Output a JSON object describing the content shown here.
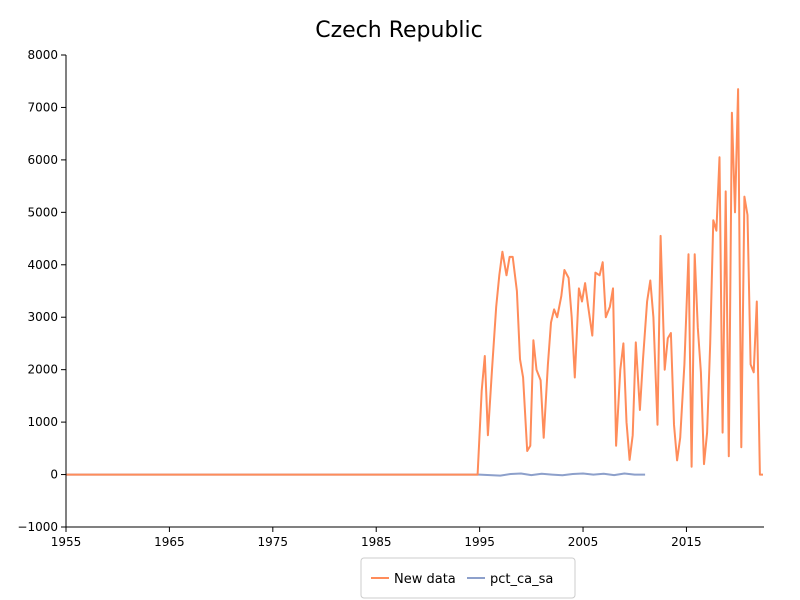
{
  "chart_data": {
    "type": "line",
    "title": "Czech Republic",
    "xlabel": "",
    "ylabel": "",
    "xlim": [
      1955,
      2022.5
    ],
    "ylim": [
      -1000,
      8000
    ],
    "xticks": [
      "1955",
      "1965",
      "1975",
      "1985",
      "1995",
      "2005",
      "2015"
    ],
    "yticks": [
      "−1000",
      "0",
      "1000",
      "2000",
      "3000",
      "4000",
      "5000",
      "6000",
      "7000",
      "8000"
    ],
    "grid": false,
    "legend_position": "bottom",
    "series": [
      {
        "name": "New data",
        "color": "#ff8c5a",
        "x": [
          1955,
          1994.8,
          1995.2,
          1995.5,
          1995.8,
          1996.2,
          1996.6,
          1996.9,
          1997.2,
          1997.6,
          1997.9,
          1998.2,
          1998.6,
          1998.9,
          1999.2,
          1999.6,
          1999.9,
          2000.2,
          2000.5,
          2000.9,
          2001.2,
          2001.6,
          2001.9,
          2002.2,
          2002.5,
          2002.9,
          2003.2,
          2003.6,
          2003.9,
          2004.2,
          2004.6,
          2004.9,
          2005.2,
          2005.5,
          2005.9,
          2006.2,
          2006.6,
          2006.9,
          2007.2,
          2007.6,
          2007.9,
          2008.2,
          2008.6,
          2008.9,
          2009.2,
          2009.5,
          2009.8,
          2010.1,
          2010.5,
          2010.8,
          2011.2,
          2011.5,
          2011.8,
          2012.2,
          2012.5,
          2012.9,
          2013.2,
          2013.5,
          2013.8,
          2014.1,
          2014.4,
          2014.8,
          2015.2,
          2015.5,
          2015.8,
          2016.1,
          2016.4,
          2016.7,
          2017.0,
          2017.3,
          2017.6,
          2017.9,
          2018.2,
          2018.5,
          2018.8,
          2019.1,
          2019.4,
          2019.7,
          2020.0,
          2020.3,
          2020.6,
          2020.9,
          2021.2,
          2021.5,
          2021.8,
          2022.1,
          2022.4
        ],
        "y": [
          0,
          0,
          1600,
          2260,
          750,
          2000,
          3200,
          3800,
          4250,
          3800,
          4150,
          4150,
          3500,
          2200,
          1850,
          450,
          550,
          2560,
          2000,
          1800,
          700,
          2100,
          2900,
          3150,
          3000,
          3400,
          3900,
          3750,
          3000,
          1850,
          3550,
          3300,
          3650,
          3200,
          2650,
          3850,
          3800,
          4050,
          3000,
          3200,
          3550,
          550,
          2000,
          2500,
          1000,
          280,
          750,
          2520,
          1230,
          2200,
          3300,
          3700,
          3000,
          950,
          4550,
          2000,
          2600,
          2700,
          950,
          270,
          700,
          2100,
          4200,
          150,
          4200,
          2800,
          1950,
          200,
          800,
          2500,
          4850,
          4650,
          6050,
          800,
          5400,
          350,
          6900,
          5000,
          7350,
          520,
          5300,
          4950,
          2100,
          1950,
          3300,
          0,
          0
        ]
      },
      {
        "name": "pct_ca_sa",
        "color": "#8da0cb",
        "x": [
          1955,
          1993.0,
          1995.0,
          1997.0,
          1998.0,
          1999.0,
          2000.0,
          2001.0,
          2002.0,
          2003.0,
          2004.0,
          2005.0,
          2006.0,
          2007.0,
          2008.0,
          2009.0,
          2010.0,
          2011.0
        ],
        "y": [
          0,
          0,
          0,
          -20,
          10,
          20,
          -10,
          15,
          0,
          -15,
          10,
          20,
          0,
          15,
          -10,
          20,
          0,
          0
        ]
      }
    ]
  }
}
